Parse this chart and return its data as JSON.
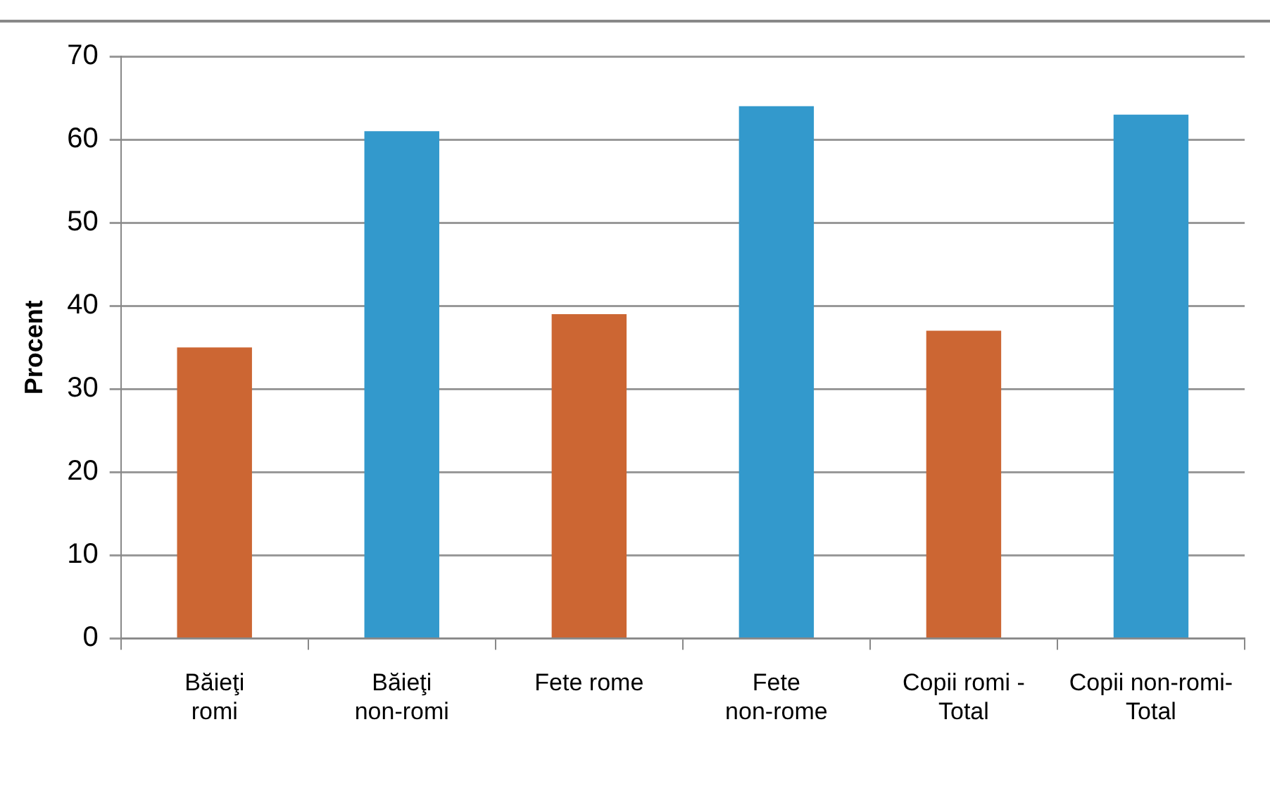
{
  "chart_data": {
    "type": "bar",
    "ylabel": "Procent",
    "categories": [
      "Băieţi\nromi",
      "Băieţi\nnon-romi",
      "Fete rome",
      "Fete\nnon-rome",
      "Copii romi -\nTotal",
      "Copii non-romi-\nTotal"
    ],
    "values": [
      35,
      61,
      39,
      64,
      37,
      63
    ],
    "colors": [
      "#cc6633",
      "#3399cc",
      "#cc6633",
      "#3399cc",
      "#cc6633",
      "#3399cc"
    ],
    "ylim": [
      0,
      70
    ],
    "yticks": [
      0,
      10,
      20,
      30,
      40,
      50,
      60,
      70
    ],
    "grid": "y",
    "legend": false
  }
}
